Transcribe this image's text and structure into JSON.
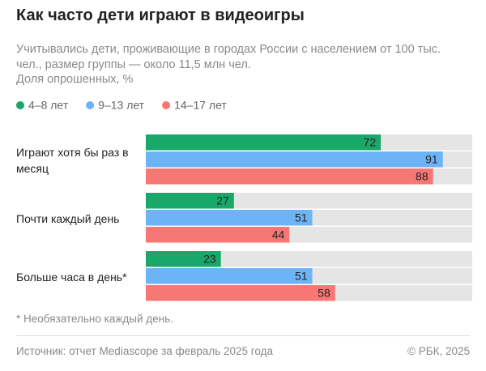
{
  "chart_data": {
    "type": "bar",
    "orientation": "horizontal",
    "title": "Как часто дети играют в видеоигры",
    "subtitle": "Учитывались дети, проживающие в городах России с населением от 100 тыс. чел., размер группы — около 11,5 млн чел.",
    "unit_note": "Доля опрошенных, %",
    "categories": [
      "Играют хотя бы раз в месяц",
      "Почти каждый день",
      "Больше часа в день*"
    ],
    "series": [
      {
        "name": "4–8 лет",
        "color": "#1aa86a",
        "values": [
          72,
          27,
          23
        ]
      },
      {
        "name": "9–13 лет",
        "color": "#6fb3f7",
        "values": [
          91,
          51,
          51
        ]
      },
      {
        "name": "14–17 лет",
        "color": "#f77775",
        "values": [
          88,
          44,
          58
        ]
      }
    ],
    "xlim": [
      0,
      100
    ],
    "track_color": "#e5e5e5",
    "footnote": "* Необязательно каждый день.",
    "source": "Источник: отчет Mediascope за февраль 2025 года",
    "copyright": "© РБК, 2025"
  }
}
